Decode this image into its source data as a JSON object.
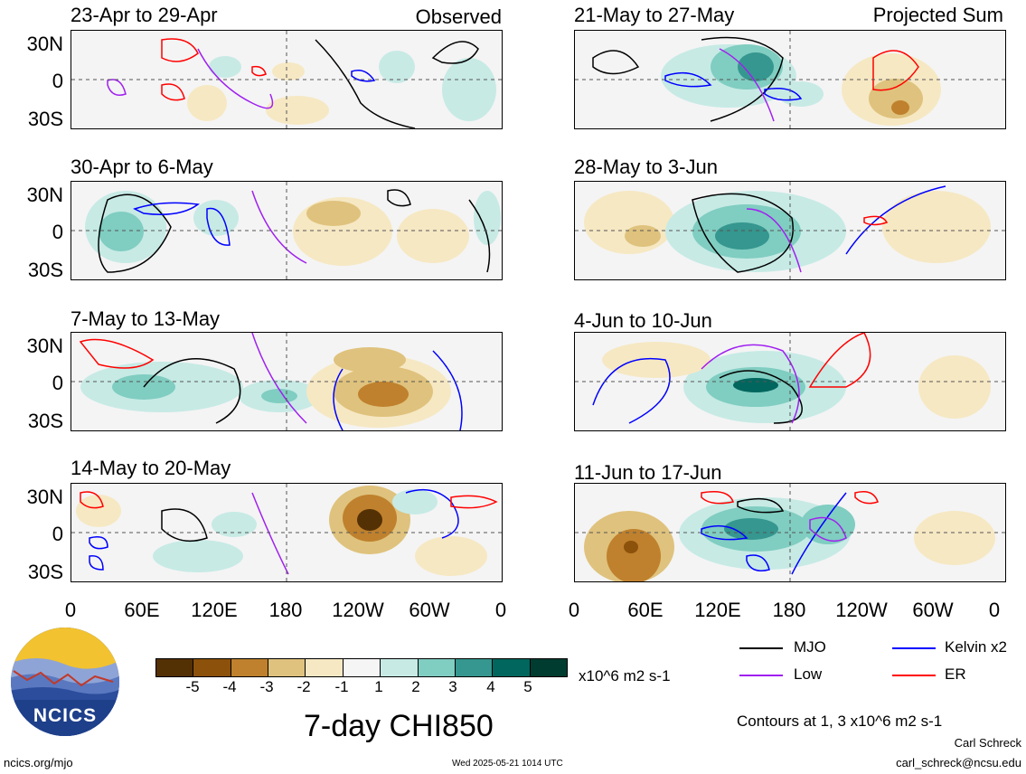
{
  "headers": {
    "left": "Observed",
    "right": "Projected Sum"
  },
  "panels": [
    {
      "title": "23-Apr to 29-Apr"
    },
    {
      "title": "21-May to 27-May"
    },
    {
      "title": "30-Apr to 6-May"
    },
    {
      "title": "28-May to 3-Jun"
    },
    {
      "title": "7-May to 13-May"
    },
    {
      "title": "4-Jun to 10-Jun"
    },
    {
      "title": "14-May to 20-May"
    },
    {
      "title": "11-Jun to 17-Jun"
    }
  ],
  "lat_labels": [
    "30N",
    "0",
    "30S"
  ],
  "lon_labels": [
    "0",
    "60E",
    "120E",
    "180",
    "120W",
    "60W",
    "0"
  ],
  "colorbar": {
    "labels": [
      "-5",
      "-4",
      "-3",
      "-2",
      "-1",
      "1",
      "2",
      "3",
      "4",
      "5"
    ],
    "colors": [
      "#543005",
      "#8c510a",
      "#bf812d",
      "#dfc27d",
      "#f6e8c3",
      "#f5f5f5",
      "#c7eae5",
      "#80cdc1",
      "#35978f",
      "#01665e",
      "#003c30"
    ],
    "units": "x10^6 m2 s-1"
  },
  "legend": [
    {
      "label": "MJO",
      "color": "#000000"
    },
    {
      "label": "Kelvin x2",
      "color": "#0000ff"
    },
    {
      "label": "Low",
      "color": "#a020f0"
    },
    {
      "label": "ER",
      "color": "#ff0000"
    }
  ],
  "contours_note": "Contours at 1, 3 x10^6 m2 s-1",
  "main_title": "7-day CHI850",
  "logo_text": "NCICS",
  "footer": {
    "site": "ncics.org/mjo",
    "timestamp": "Wed 2025-05-21 1014 UTC",
    "author": "Carl Schreck",
    "email": "carl_schreck@ncsu.edu"
  }
}
